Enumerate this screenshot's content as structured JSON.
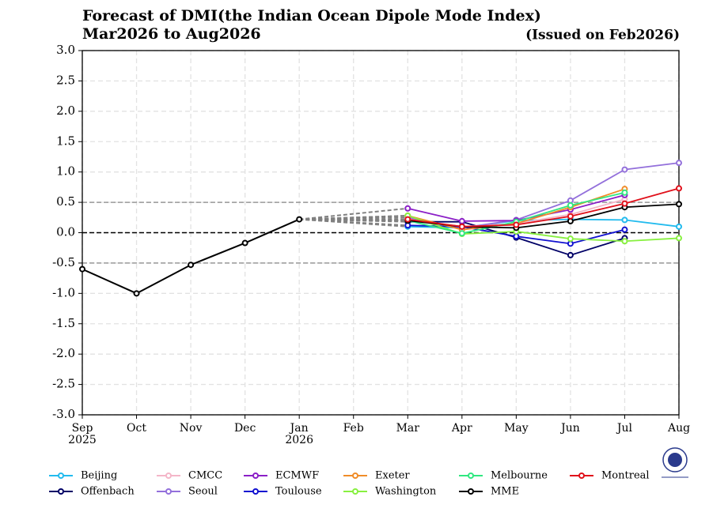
{
  "chart_data": {
    "type": "line",
    "title": "Forecast of DMI(the Indian Ocean Dipole Mode Index)",
    "subtitle": "Mar2026 to Aug2026",
    "annotation": "(Issued on Feb2026)",
    "categories": [
      "Sep\n2025",
      "Oct",
      "Nov",
      "Dec",
      "Jan\n2026",
      "Feb",
      "Mar",
      "Apr",
      "May",
      "Jun",
      "Jul",
      "Aug"
    ],
    "ylim": [
      -3,
      3
    ],
    "yticks": [
      {
        "value": 3,
        "label": "3.0"
      },
      {
        "value": 2.5,
        "label": "2.5"
      },
      {
        "value": 2,
        "label": "2.0"
      },
      {
        "value": 1.5,
        "label": "1.5"
      },
      {
        "value": 1,
        "label": "1.0"
      },
      {
        "value": 0.5,
        "label": "0.5"
      },
      {
        "value": 0,
        "label": "0.0"
      },
      {
        "value": -0.5,
        "label": "-0.5"
      },
      {
        "value": -1,
        "label": "-1.0"
      },
      {
        "value": -1.5,
        "label": "-1.5"
      },
      {
        "value": -2,
        "label": "-2.0"
      },
      {
        "value": -2.5,
        "label": "-2.5"
      },
      {
        "value": -3,
        "label": "-3.0"
      }
    ],
    "grid": true,
    "hlines": [
      {
        "value": 0.5,
        "color": "#999999"
      },
      {
        "value": 0,
        "color": "#000000"
      },
      {
        "value": -0.5,
        "color": "#999999"
      }
    ],
    "observed": {
      "color": "#000000",
      "values": [
        -0.6,
        -1.0,
        -0.53,
        -0.17,
        0.22,
        null,
        null,
        null,
        null,
        null,
        null,
        null
      ]
    },
    "series": [
      {
        "name": "Beijing",
        "color": "#22bbee",
        "values": [
          null,
          null,
          null,
          null,
          null,
          null,
          0.1,
          0.08,
          0.2,
          0.22,
          0.21,
          0.1
        ]
      },
      {
        "name": "Offenbach",
        "color": "#000066",
        "values": [
          null,
          null,
          null,
          null,
          null,
          null,
          0.18,
          0.18,
          -0.08,
          -0.37,
          -0.09,
          null
        ]
      },
      {
        "name": "CMCC",
        "color": "#f4b6c8",
        "values": [
          null,
          null,
          null,
          null,
          null,
          null,
          0.2,
          0.1,
          0.15,
          0.3,
          0.55,
          null
        ]
      },
      {
        "name": "Seoul",
        "color": "#9370db",
        "values": [
          null,
          null,
          null,
          null,
          null,
          null,
          0.25,
          0.08,
          0.21,
          0.53,
          1.04,
          1.15
        ]
      },
      {
        "name": "ECMWF",
        "color": "#8b1fc7",
        "values": [
          null,
          null,
          null,
          null,
          null,
          null,
          0.4,
          0.19,
          0.2,
          0.38,
          0.62,
          null
        ]
      },
      {
        "name": "Toulouse",
        "color": "#1010d0",
        "values": [
          null,
          null,
          null,
          null,
          null,
          null,
          0.12,
          0.1,
          -0.06,
          -0.18,
          0.05,
          null
        ]
      },
      {
        "name": "Exeter",
        "color": "#f08c28",
        "values": [
          null,
          null,
          null,
          null,
          null,
          null,
          0.28,
          0.05,
          0.15,
          0.42,
          0.72,
          null
        ]
      },
      {
        "name": "Washington",
        "color": "#88f040",
        "values": [
          null,
          null,
          null,
          null,
          null,
          null,
          0.28,
          -0.02,
          0.02,
          -0.1,
          -0.14,
          -0.09
        ]
      },
      {
        "name": "Melbourne",
        "color": "#30e880",
        "values": [
          null,
          null,
          null,
          null,
          null,
          null,
          0.2,
          -0.01,
          0.18,
          0.45,
          0.66,
          null
        ]
      },
      {
        "name": "MME",
        "color": "#000000",
        "values": [
          null,
          null,
          null,
          null,
          null,
          null,
          0.2,
          0.1,
          0.08,
          0.19,
          0.42,
          0.47
        ]
      },
      {
        "name": "Montreal",
        "color": "#e0101a",
        "values": [
          null,
          null,
          null,
          null,
          null,
          null,
          0.22,
          0.1,
          0.13,
          0.27,
          0.48,
          0.73
        ]
      }
    ]
  }
}
